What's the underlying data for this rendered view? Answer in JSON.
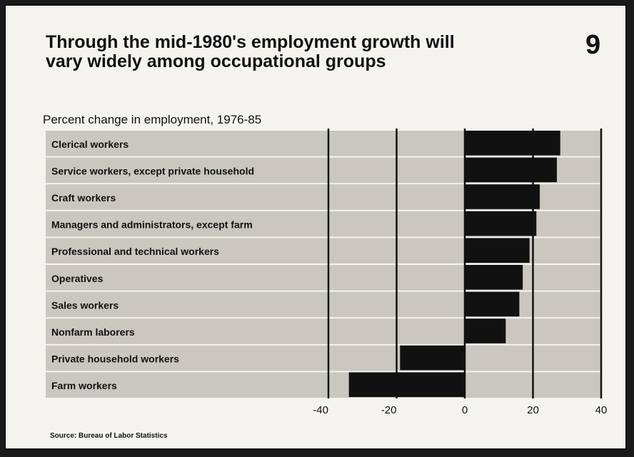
{
  "page": {
    "title_line1": "Through the mid-1980's employment growth will",
    "title_line2": "vary widely among occupational groups",
    "chart_number": "9",
    "source": "Source: Bureau of Labor Statistics"
  },
  "chart_data": {
    "type": "bar",
    "orientation": "horizontal",
    "title": "Percent change in employment, 1976-85",
    "xlabel": "",
    "ylabel": "",
    "xlim": [
      -40,
      40
    ],
    "x_ticks": [
      -40,
      -20,
      0,
      20,
      40
    ],
    "grid": true,
    "categories": [
      "Clerical workers",
      "Service workers, except private household",
      "Craft workers",
      "Managers and administrators, except farm",
      "Professional and technical workers",
      "Operatives",
      "Sales workers",
      "Nonfarm laborers",
      "Private household workers",
      "Farm workers"
    ],
    "values": [
      28,
      27,
      22,
      21,
      19,
      17,
      16,
      12,
      -19,
      -34
    ],
    "colors": {
      "bar": "#111111",
      "band": "#c9c7c0",
      "gridline": "#111111",
      "text": "#111111",
      "background": "#f4f3ee"
    }
  }
}
